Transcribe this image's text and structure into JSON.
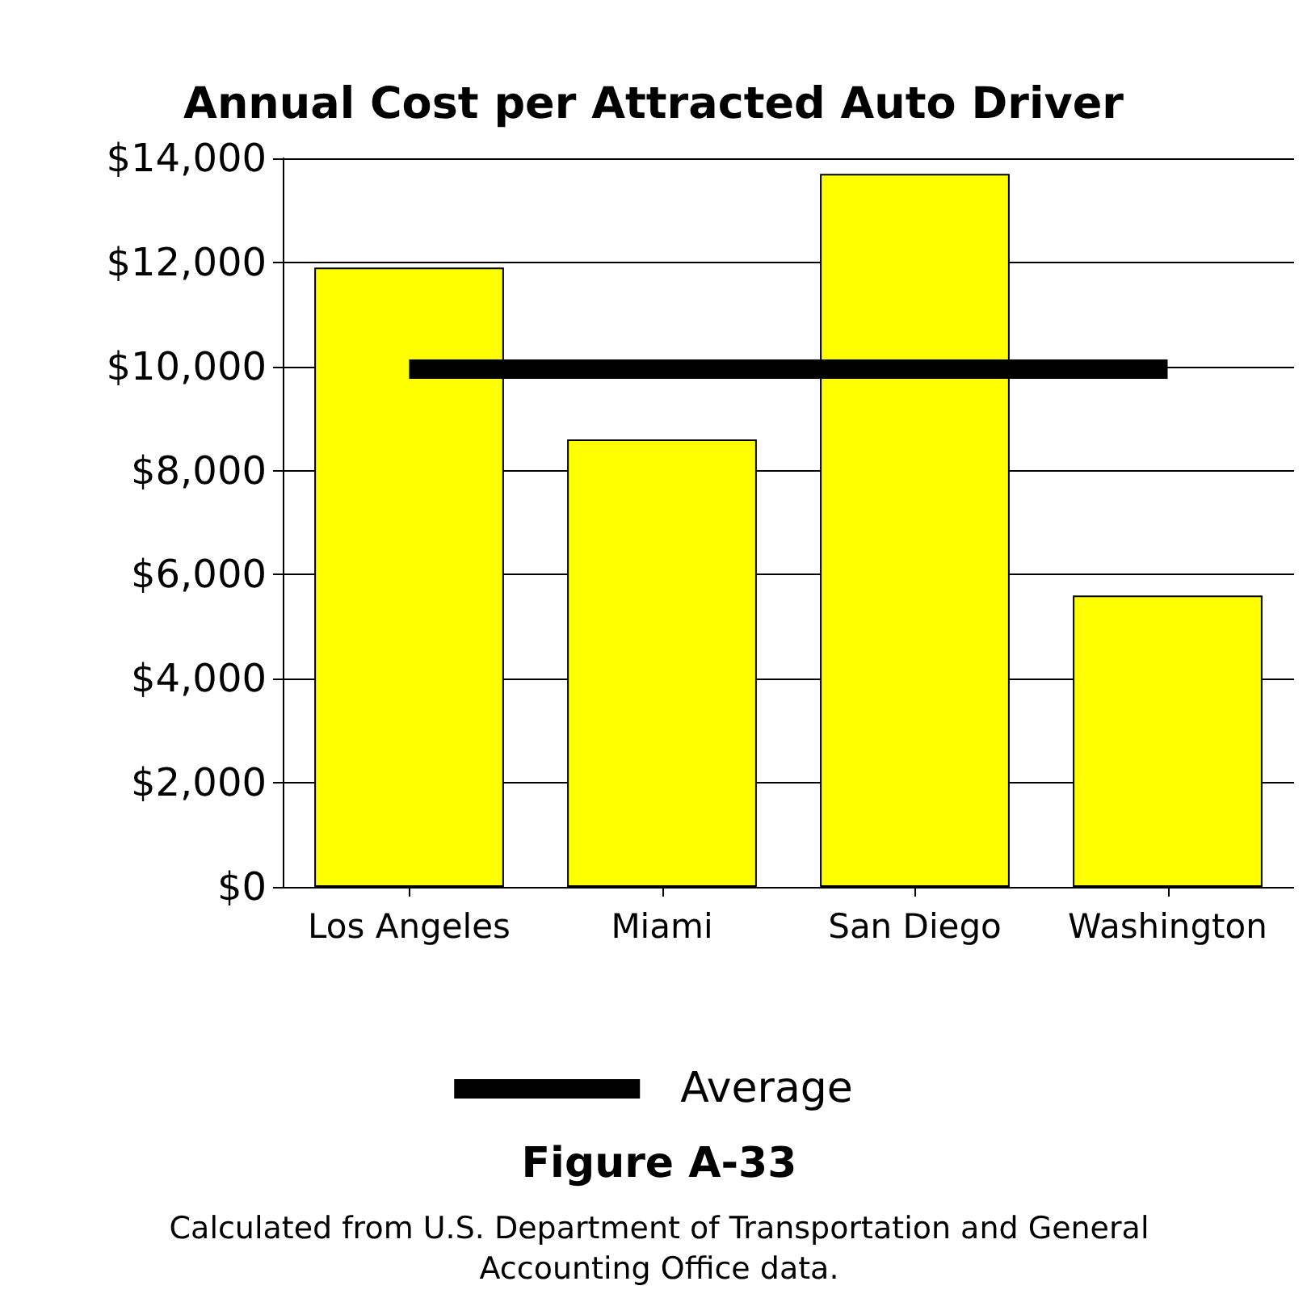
{
  "chart_data": {
    "type": "bar",
    "title": "Annual Cost per Attracted Auto Driver",
    "categories": [
      "Los Angeles",
      "Miami",
      "San Diego",
      "Washington"
    ],
    "series": [
      {
        "color": "#ffff00",
        "values": [
          11900,
          8600,
          13700,
          5600
        ]
      },
      {
        "type": "line",
        "name": "Average",
        "color": "#000000",
        "values": [
          9950,
          9950,
          9950,
          9950
        ],
        "line_style": "solid",
        "marker": "none"
      }
    ],
    "ylim": [
      0,
      14000
    ],
    "yticks": [
      {
        "value": 0,
        "label": "$0"
      },
      {
        "value": 2000,
        "label": "$2,000"
      },
      {
        "value": 4000,
        "label": "$4,000"
      },
      {
        "value": 6000,
        "label": "$6,000"
      },
      {
        "value": 8000,
        "label": "$8,000"
      },
      {
        "value": 10000,
        "label": "$10,000"
      },
      {
        "value": 12000,
        "label": "$12,000"
      },
      {
        "value": 14000,
        "label": "$14,000"
      }
    ],
    "grid": "y",
    "legend": "bottom",
    "annotations": [
      "Figure A-33",
      "Calculated from U.S. Department of Transportation and General\nAccounting Office data."
    ]
  }
}
